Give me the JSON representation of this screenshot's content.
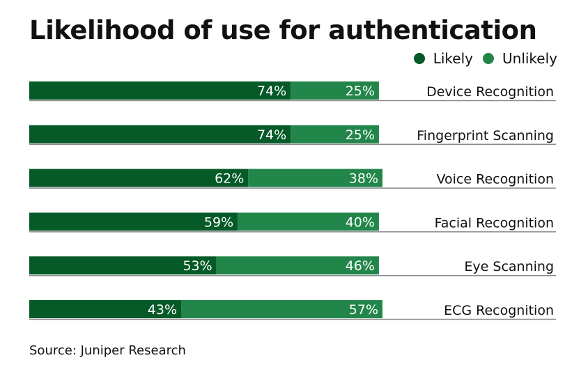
{
  "chart_data": {
    "type": "bar",
    "orientation": "horizontal-stacked",
    "title": "Likelihood of use for authentication",
    "categories": [
      "Device Recognition",
      "Fingerprint Scanning",
      "Voice Recognition",
      "Facial Recognition",
      "Eye Scanning",
      "ECG Recognition"
    ],
    "series": [
      {
        "name": "Likely",
        "color": "#055a27",
        "values": [
          74,
          74,
          62,
          59,
          53,
          43
        ]
      },
      {
        "name": "Unlikely",
        "color": "#22864b",
        "values": [
          25,
          25,
          38,
          40,
          46,
          57
        ]
      }
    ],
    "data_labels": [
      [
        "74%",
        "25%"
      ],
      [
        "74%",
        "25%"
      ],
      [
        "62%",
        "38%"
      ],
      [
        "59%",
        "40%"
      ],
      [
        "53%",
        "46%"
      ],
      [
        "43%",
        "57%"
      ]
    ],
    "xlim": [
      0,
      100
    ],
    "unit": "%",
    "legend_position": "top-right",
    "grid": false,
    "source": "Source: Juniper Research"
  }
}
